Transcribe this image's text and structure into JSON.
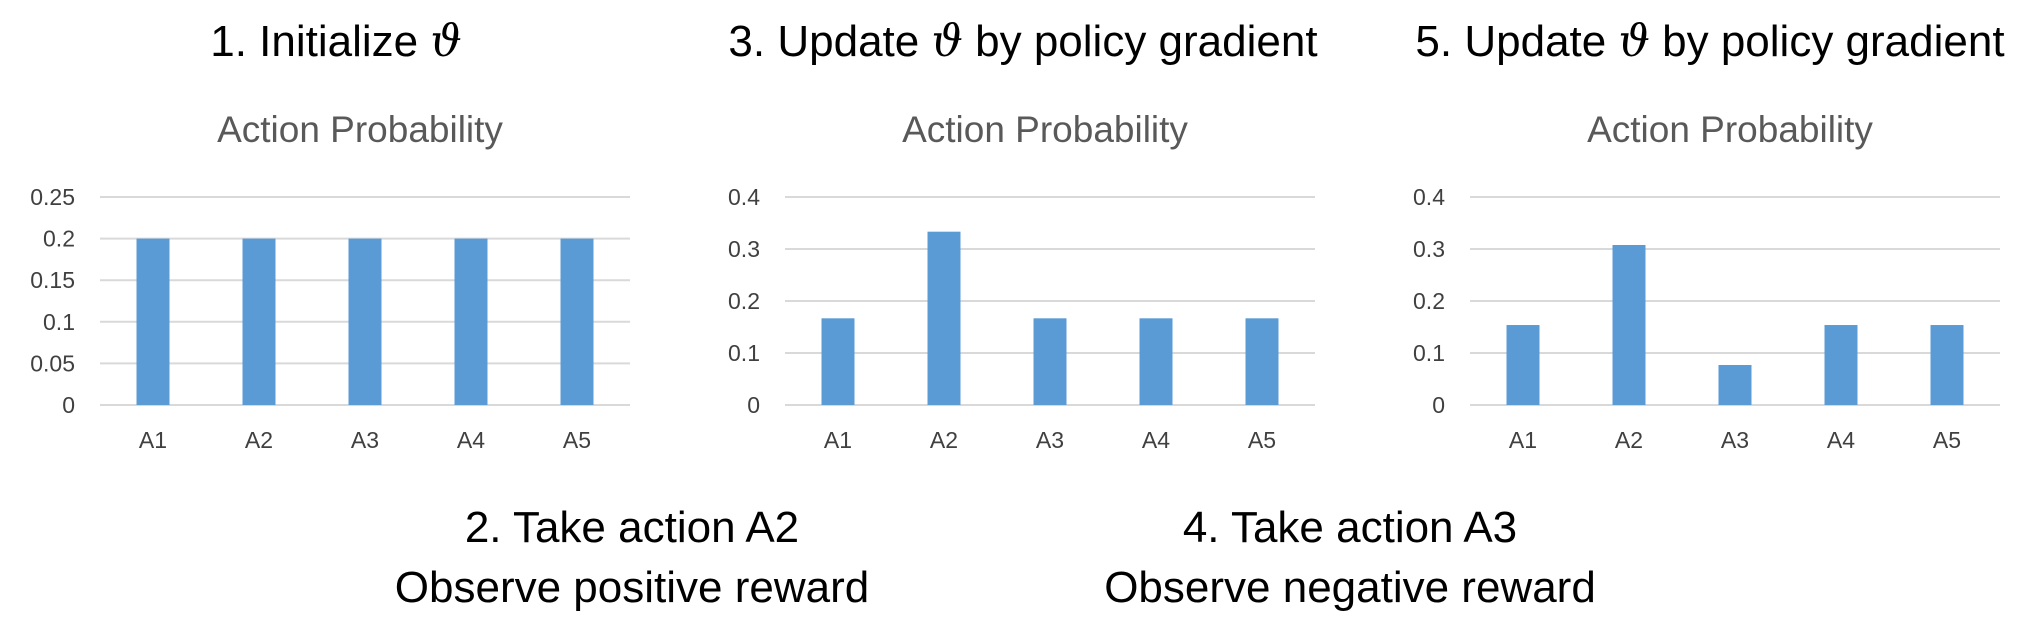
{
  "steps": {
    "step1": {
      "prefix": "1. Initialize ",
      "symbol": "ϑ",
      "suffix": ""
    },
    "step2": {
      "line1": "2. Take action A2",
      "line2": "Observe positive reward"
    },
    "step3": {
      "prefix": "3. Update ",
      "symbol": "ϑ",
      "suffix": " by policy gradient"
    },
    "step4": {
      "line1": "4. Take action A3",
      "line2": "Observe negative reward"
    },
    "step5": {
      "prefix": "5. Update ",
      "symbol": "ϑ",
      "suffix": " by policy gradient"
    }
  },
  "chart_data": [
    {
      "type": "bar",
      "title": "Action Probability",
      "categories": [
        "A1",
        "A2",
        "A3",
        "A4",
        "A5"
      ],
      "values": [
        0.2,
        0.2,
        0.2,
        0.2,
        0.2
      ],
      "ylim": [
        0,
        0.25
      ],
      "yticks": [
        "0",
        "0.05",
        "0.1",
        "0.15",
        "0.2",
        "0.25"
      ],
      "grid": true,
      "bar_color": "#5b9bd5"
    },
    {
      "type": "bar",
      "title": "Action Probability",
      "categories": [
        "A1",
        "A2",
        "A3",
        "A4",
        "A5"
      ],
      "values": [
        0.1667,
        0.3333,
        0.1667,
        0.1667,
        0.1667
      ],
      "ylim": [
        0,
        0.4
      ],
      "yticks": [
        "0",
        "0.1",
        "0.2",
        "0.3",
        "0.4"
      ],
      "grid": true,
      "bar_color": "#5b9bd5"
    },
    {
      "type": "bar",
      "title": "Action Probability",
      "categories": [
        "A1",
        "A2",
        "A3",
        "A4",
        "A5"
      ],
      "values": [
        0.1538,
        0.3077,
        0.0769,
        0.1538,
        0.1538
      ],
      "ylim": [
        0,
        0.4
      ],
      "yticks": [
        "0",
        "0.1",
        "0.2",
        "0.3",
        "0.4"
      ],
      "grid": true,
      "bar_color": "#5b9bd5"
    }
  ]
}
